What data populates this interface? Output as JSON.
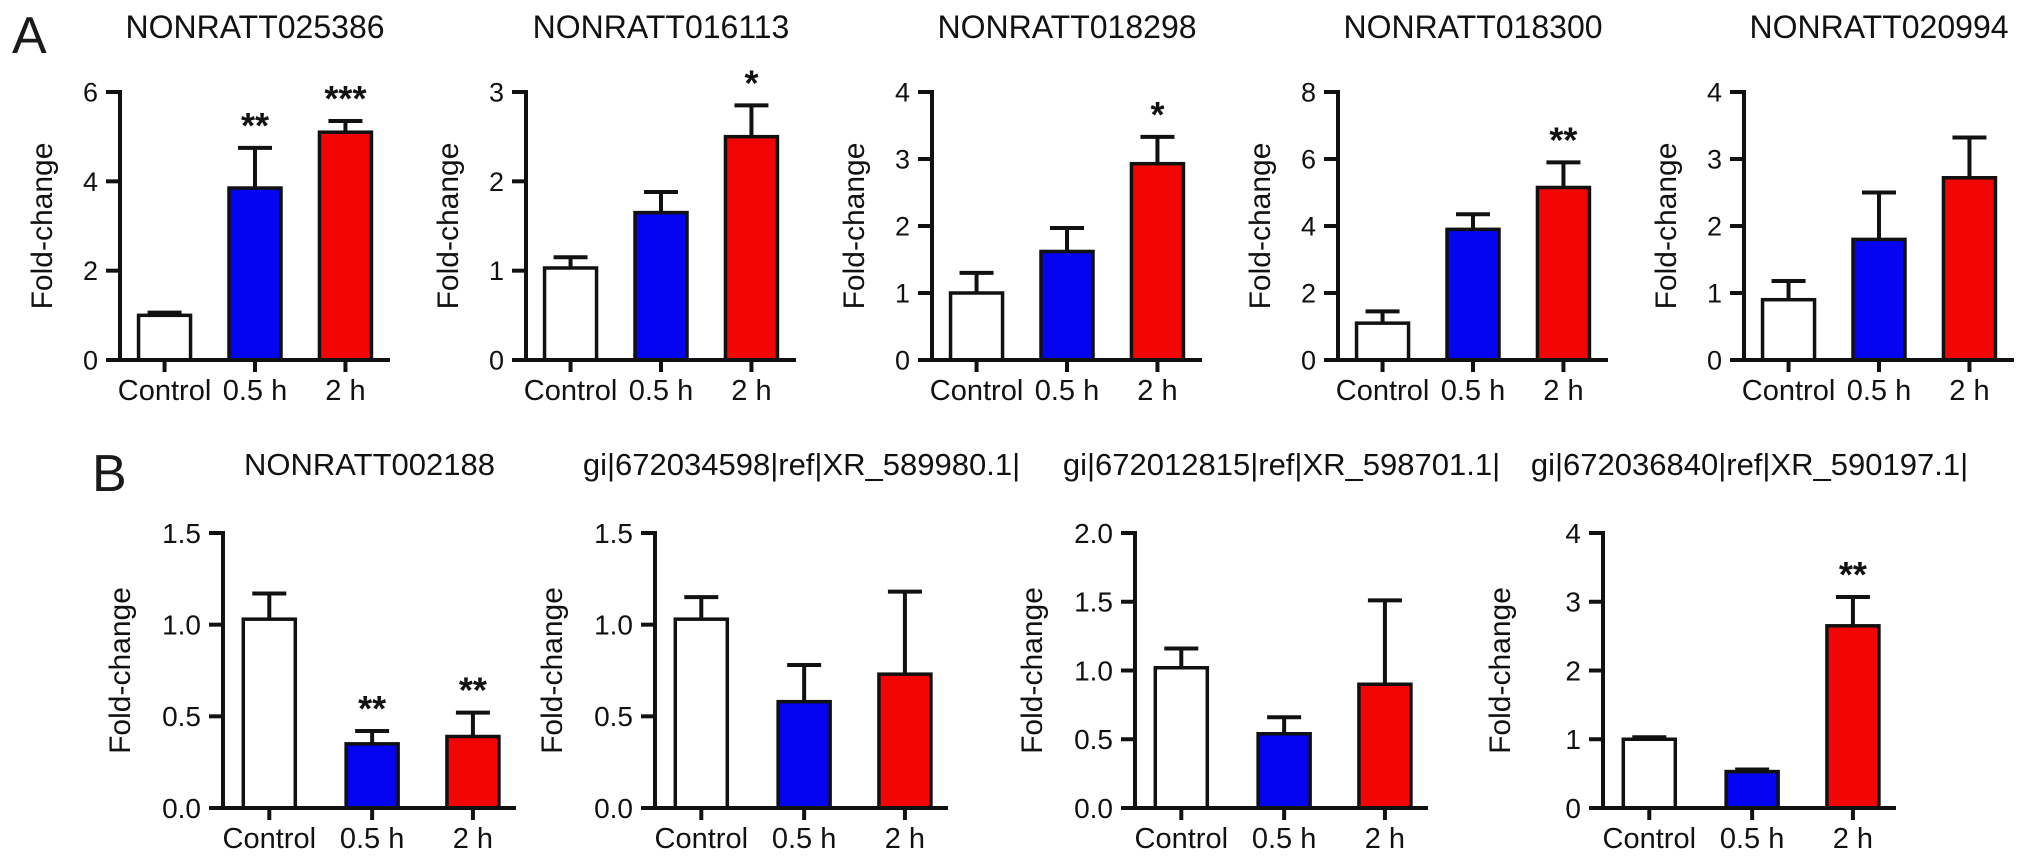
{
  "figure": {
    "panels": [
      {
        "label": "A"
      },
      {
        "label": "B"
      }
    ],
    "colors": {
      "control_bar": "#ffffff",
      "bar_05h": "#0404f0",
      "bar_2h": "#f20505",
      "axis": "#111111",
      "background": "#ffffff"
    }
  },
  "chart_data": [
    {
      "panel": "A",
      "type": "bar",
      "title": "NONRATT025386",
      "ylabel": "Fold-change",
      "xlabel": "",
      "categories": [
        "Control",
        "0.5 h",
        "2 h"
      ],
      "values": [
        1.0,
        3.85,
        5.1
      ],
      "errors": [
        0.06,
        0.9,
        0.25
      ],
      "significance": [
        "",
        "**",
        "***"
      ],
      "ylim": [
        0,
        6
      ],
      "yticks": [
        0,
        2,
        4,
        6
      ],
      "ytick_labels": [
        "0",
        "2",
        "4",
        "6"
      ],
      "grid": "off",
      "legend": "none"
    },
    {
      "panel": "A",
      "type": "bar",
      "title": "NONRATT016113",
      "ylabel": "Fold-change",
      "xlabel": "",
      "categories": [
        "Control",
        "0.5 h",
        "2 h"
      ],
      "values": [
        1.03,
        1.65,
        2.5
      ],
      "errors": [
        0.12,
        0.23,
        0.35
      ],
      "significance": [
        "",
        "",
        "*"
      ],
      "ylim": [
        0,
        3
      ],
      "yticks": [
        0,
        1,
        2,
        3
      ],
      "ytick_labels": [
        "0",
        "1",
        "2",
        "3"
      ],
      "grid": "off",
      "legend": "none"
    },
    {
      "panel": "A",
      "type": "bar",
      "title": "NONRATT018298",
      "ylabel": "Fold-change",
      "xlabel": "",
      "categories": [
        "Control",
        "0.5 h",
        "2 h"
      ],
      "values": [
        1.0,
        1.62,
        2.93
      ],
      "errors": [
        0.3,
        0.35,
        0.4
      ],
      "significance": [
        "",
        "",
        "*"
      ],
      "ylim": [
        0,
        4
      ],
      "yticks": [
        0,
        1,
        2,
        3,
        4
      ],
      "ytick_labels": [
        "0",
        "1",
        "2",
        "3",
        "4"
      ],
      "grid": "off",
      "legend": "none"
    },
    {
      "panel": "A",
      "type": "bar",
      "title": "NONRATT018300",
      "ylabel": "Fold-change",
      "xlabel": "",
      "categories": [
        "Control",
        "0.5 h",
        "2 h"
      ],
      "values": [
        1.1,
        3.9,
        5.15
      ],
      "errors": [
        0.35,
        0.45,
        0.75
      ],
      "significance": [
        "",
        "",
        "**"
      ],
      "ylim": [
        0,
        8
      ],
      "yticks": [
        0,
        2,
        4,
        6,
        8
      ],
      "ytick_labels": [
        "0",
        "2",
        "4",
        "6",
        "8"
      ],
      "grid": "off",
      "legend": "none"
    },
    {
      "panel": "A",
      "type": "bar",
      "title": "NONRATT020994",
      "ylabel": "Fold-change",
      "xlabel": "",
      "categories": [
        "Control",
        "0.5 h",
        "2 h"
      ],
      "values": [
        0.9,
        1.8,
        2.72
      ],
      "errors": [
        0.28,
        0.7,
        0.6
      ],
      "significance": [
        "",
        "",
        ""
      ],
      "ylim": [
        0,
        4
      ],
      "yticks": [
        0,
        1,
        2,
        3,
        4
      ],
      "ytick_labels": [
        "0",
        "1",
        "2",
        "3",
        "4"
      ],
      "grid": "off",
      "legend": "none"
    },
    {
      "panel": "B",
      "type": "bar",
      "title": "NONRATT002188",
      "ylabel": "Fold-change",
      "xlabel": "",
      "categories": [
        "Control",
        "0.5 h",
        "2 h"
      ],
      "values": [
        1.03,
        0.35,
        0.39
      ],
      "errors": [
        0.14,
        0.07,
        0.13
      ],
      "significance": [
        "",
        "**",
        "**"
      ],
      "ylim": [
        0,
        1.5
      ],
      "yticks": [
        0,
        0.5,
        1.0,
        1.5
      ],
      "ytick_labels": [
        "0.0",
        "0.5",
        "1.0",
        "1.5"
      ],
      "grid": "off",
      "legend": "none"
    },
    {
      "panel": "B",
      "type": "bar",
      "title": "gi|672034598|ref|XR_589980.1|",
      "ylabel": "Fold-change",
      "xlabel": "",
      "categories": [
        "Control",
        "0.5 h",
        "2 h"
      ],
      "values": [
        1.03,
        0.58,
        0.73
      ],
      "errors": [
        0.12,
        0.2,
        0.45
      ],
      "significance": [
        "",
        "",
        ""
      ],
      "ylim": [
        0,
        1.5
      ],
      "yticks": [
        0,
        0.5,
        1.0,
        1.5
      ],
      "ytick_labels": [
        "0.0",
        "0.5",
        "1.0",
        "1.5"
      ],
      "grid": "off",
      "legend": "none"
    },
    {
      "panel": "B",
      "type": "bar",
      "title": "gi|672012815|ref|XR_598701.1|",
      "ylabel": "Fold-change",
      "xlabel": "",
      "categories": [
        "Control",
        "0.5 h",
        "2 h"
      ],
      "values": [
        1.02,
        0.54,
        0.9
      ],
      "errors": [
        0.14,
        0.12,
        0.61
      ],
      "significance": [
        "",
        "",
        ""
      ],
      "ylim": [
        0,
        2.0
      ],
      "yticks": [
        0,
        0.5,
        1.0,
        1.5,
        2.0
      ],
      "ytick_labels": [
        "0.0",
        "0.5",
        "1.0",
        "1.5",
        "2.0"
      ],
      "grid": "off",
      "legend": "none"
    },
    {
      "panel": "B",
      "type": "bar",
      "title": "gi|672036840|ref|XR_590197.1|",
      "ylabel": "Fold-change",
      "xlabel": "",
      "categories": [
        "Control",
        "0.5 h",
        "2 h"
      ],
      "values": [
        1.0,
        0.53,
        2.65
      ],
      "errors": [
        0.03,
        0.03,
        0.42
      ],
      "significance": [
        "",
        "",
        "**"
      ],
      "ylim": [
        0,
        4
      ],
      "yticks": [
        0,
        1,
        2,
        3,
        4
      ],
      "ytick_labels": [
        "0",
        "1",
        "2",
        "3",
        "4"
      ],
      "grid": "off",
      "legend": "none"
    }
  ]
}
